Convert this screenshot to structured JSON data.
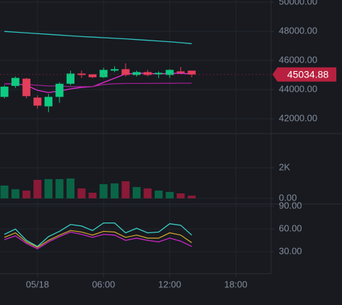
{
  "chart_data": [
    {
      "type": "candlestick",
      "x": [
        -3,
        -2,
        -1,
        0,
        1,
        2,
        3,
        4,
        5,
        6,
        7,
        8,
        9,
        10,
        11,
        12,
        13,
        14
      ],
      "xlim": [
        -3.4,
        21.2
      ],
      "open": [
        43500,
        44250,
        44750,
        43450,
        42850,
        43500,
        44400,
        45100,
        45050,
        44850,
        45300,
        45400,
        45000,
        45200,
        45050,
        45000,
        45250,
        45300
      ],
      "high": [
        44300,
        44900,
        44800,
        43600,
        43700,
        44500,
        45300,
        45300,
        45050,
        45500,
        45600,
        45800,
        45300,
        45350,
        45250,
        45400,
        45550,
        45300
      ],
      "low": [
        43400,
        44100,
        43400,
        42700,
        42450,
        43100,
        44300,
        44800,
        44800,
        44800,
        45200,
        44900,
        44900,
        44900,
        44800,
        44800,
        45050,
        44850
      ],
      "close": [
        44200,
        44800,
        43550,
        42900,
        43500,
        44400,
        45100,
        45000,
        44850,
        45350,
        45400,
        45000,
        45200,
        45000,
        45150,
        45350,
        45150,
        45034.88
      ],
      "up_color": "#0ecb81",
      "down_color": "#e33e5a",
      "series": [
        {
          "color": "#2ec4c0",
          "values": [
            47990,
            47940,
            47890,
            47840,
            47790,
            47740,
            47690,
            47640,
            47600,
            47560,
            47520,
            47480,
            47430,
            47380,
            47330,
            47280,
            47220,
            47150
          ]
        },
        {
          "color": "#e52fd6",
          "values": [
            44390,
            44400,
            44290,
            43950,
            43800,
            43900,
            44050,
            44150,
            44200,
            44490,
            44780,
            45070,
            45120,
            45120,
            45070,
            45120,
            45120,
            45070
          ]
        },
        {
          "color": "#9b1f8f",
          "values": [
            44400,
            44380,
            44350,
            44300,
            44250,
            44250,
            44200,
            44200,
            44200,
            44350,
            44400,
            44420,
            44420,
            44420,
            44430,
            44430,
            44440,
            44440
          ]
        }
      ],
      "last_price": 45034.88,
      "last_price_color": "#b7213f",
      "ylim": [
        40976,
        50146
      ],
      "yticks": [
        {
          "value": 42000,
          "label": "42000.00"
        },
        {
          "value": 44000,
          "label": "44000.00"
        },
        {
          "value": 46000,
          "label": "46000.00"
        },
        {
          "value": 48000,
          "label": "48000.00"
        },
        {
          "value": 50000,
          "label": "50000.00"
        }
      ],
      "grid": true
    },
    {
      "type": "bar",
      "values": [
        840,
        600,
        510,
        1210,
        1260,
        1260,
        1300,
        650,
        370,
        930,
        980,
        1120,
        740,
        650,
        510,
        420,
        330,
        180
      ],
      "up_color": "#0b6446",
      "down_color": "#8a1a37",
      "ylim": [
        -370,
        4230
      ],
      "yticks": [
        {
          "value": 0,
          "label": "0.00"
        },
        {
          "value": 2000,
          "label": "2K"
        }
      ],
      "grid": true
    },
    {
      "type": "line",
      "series": [
        {
          "color": "#3ad1c6",
          "values": [
            53,
            60,
            45,
            37,
            50,
            57,
            66,
            64,
            58,
            68,
            68,
            55,
            61,
            55,
            56,
            67,
            65,
            52
          ]
        },
        {
          "color": "#c9a22a",
          "values": [
            49,
            55,
            43,
            36,
            45,
            52,
            58,
            56,
            52,
            57,
            56,
            49,
            52,
            48,
            48,
            55,
            52,
            42
          ]
        },
        {
          "color": "#cf26c9",
          "values": [
            46,
            51,
            41,
            34,
            43,
            50,
            56,
            53,
            49,
            53,
            52,
            45,
            48,
            45,
            43,
            48,
            44,
            37
          ]
        }
      ],
      "ylim": [
        1,
        93
      ],
      "yticks": [
        {
          "value": 30,
          "label": "30.00"
        },
        {
          "value": 60,
          "label": "60.00"
        },
        {
          "value": 90,
          "label": "90.00"
        }
      ],
      "xticks": [
        {
          "value": 0,
          "label": "05/18"
        },
        {
          "value": 6,
          "label": "06:00"
        },
        {
          "value": 12,
          "label": "12:00"
        },
        {
          "value": 18,
          "label": "18:00"
        }
      ],
      "grid": true
    }
  ]
}
